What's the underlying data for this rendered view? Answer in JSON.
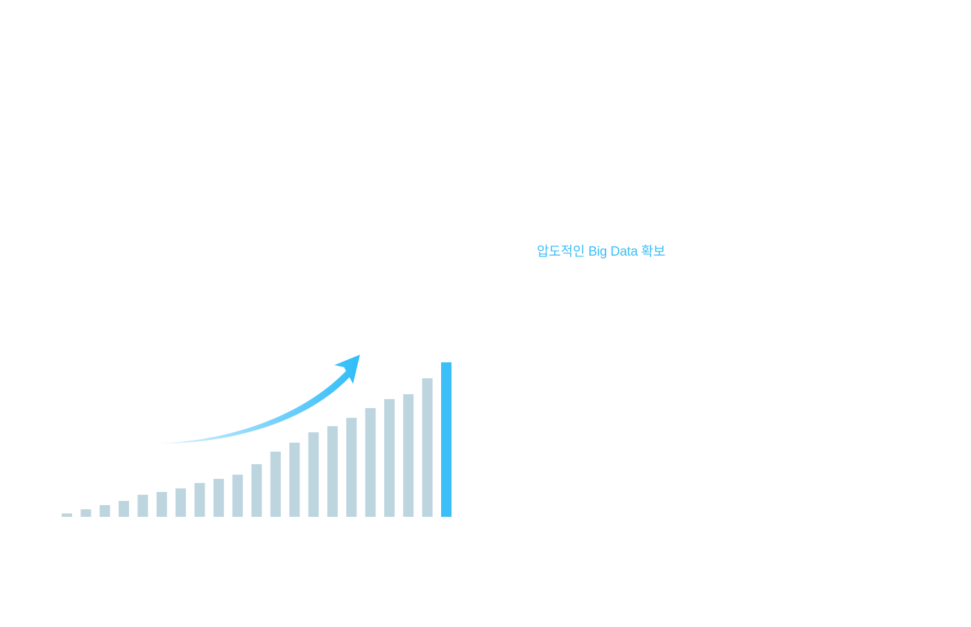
{
  "headline": {
    "text": "압도적인 Big Data 확보"
  },
  "colors": {
    "accent": "#3bbff8",
    "bar": "#bdd5df",
    "arrow_start": "#e3f4fd",
    "arrow_end": "#2ebdf9",
    "background": "#ffffff"
  },
  "icons": {
    "growth_arrow": "up-right-curved-arrow-icon"
  },
  "chart_data": {
    "type": "bar",
    "title": "",
    "xlabel": "",
    "ylabel": "",
    "grid": false,
    "axes_visible": false,
    "ylim": [
      0,
      100
    ],
    "values": [
      2.2,
      4.9,
      7.6,
      10.3,
      14.3,
      16.1,
      18.4,
      21.9,
      24.6,
      27.3,
      34.1,
      42.2,
      48.0,
      54.7,
      58.7,
      64.1,
      70.4,
      76.2,
      79.4,
      89.7,
      100
    ],
    "highlight_index": 20
  }
}
